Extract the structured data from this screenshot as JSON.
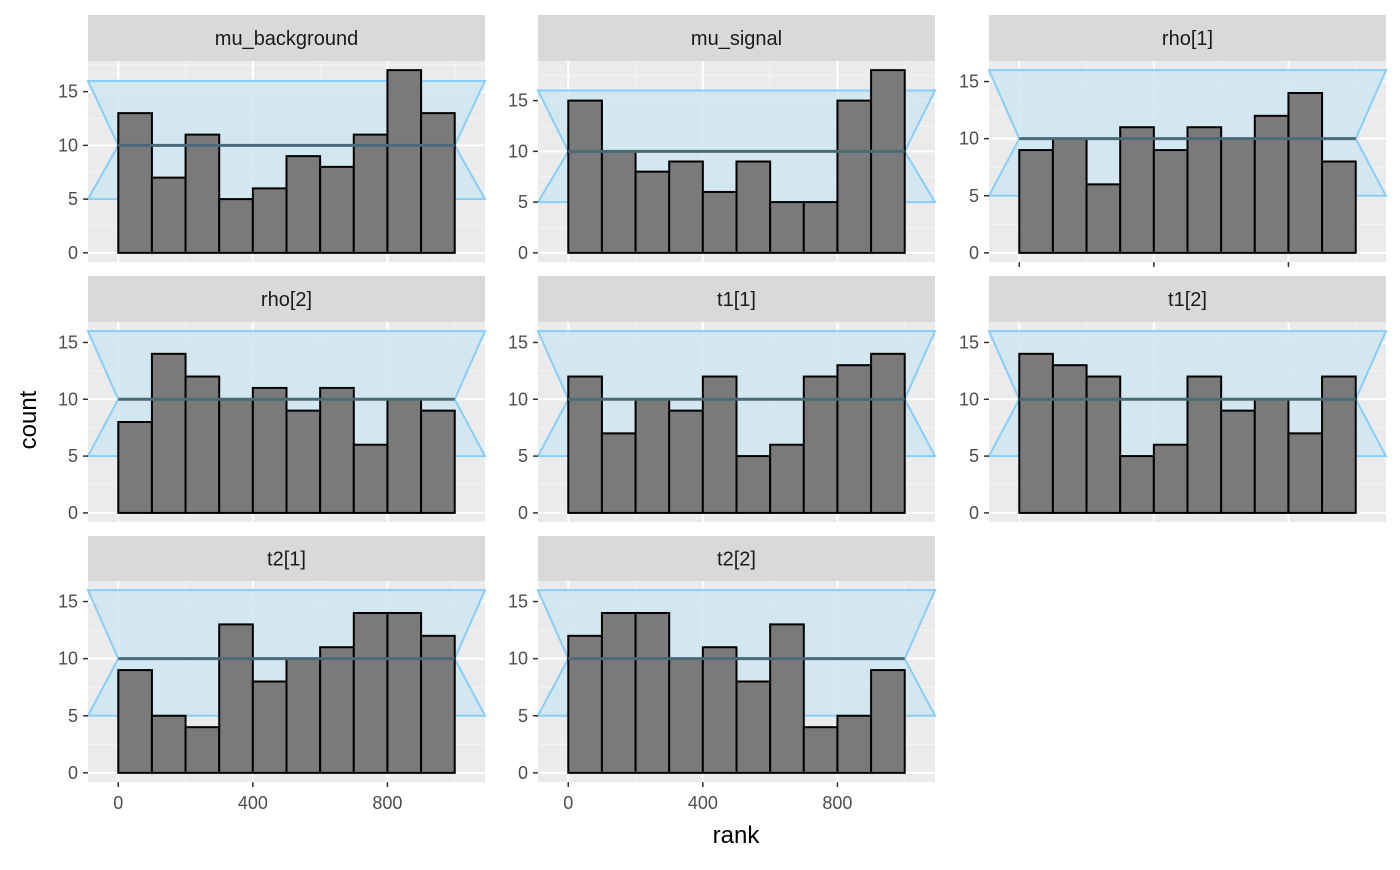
{
  "chart_data": {
    "type": "bar",
    "xlabel": "rank",
    "ylabel": "count",
    "grid": true,
    "xlim": [
      -90,
      1090
    ],
    "x_ticks": [
      0,
      400,
      800
    ],
    "x_tick_labels": [
      "0",
      "400",
      "800"
    ],
    "bin_width": 100,
    "bin_starts": [
      0,
      100,
      200,
      300,
      400,
      500,
      600,
      700,
      800,
      900
    ],
    "band": {
      "type": "area",
      "mean": 10,
      "lower": 5,
      "upper": 16,
      "fill_color": "#cfe6f2",
      "line_color": "#87cefa",
      "mean_line_color": "#4a6a78"
    },
    "bar_fill": "#7a7a7a",
    "bar_stroke": "#000000",
    "panels": [
      {
        "title": "mu_background",
        "ylim": [
          -0.85,
          17.85
        ],
        "y_ticks": [
          0,
          5,
          10,
          15
        ],
        "y_tick_labels": [
          "0",
          "5",
          "10",
          "15"
        ],
        "values": [
          13,
          7,
          11,
          5,
          6,
          9,
          8,
          11,
          17,
          13
        ]
      },
      {
        "title": "mu_signal",
        "ylim": [
          -0.9,
          18.9
        ],
        "y_ticks": [
          0,
          5,
          10,
          15
        ],
        "y_tick_labels": [
          "0",
          "5",
          "10",
          "15"
        ],
        "values": [
          15,
          10,
          8,
          9,
          6,
          9,
          5,
          5,
          15,
          18
        ]
      },
      {
        "title": "rho[1]",
        "ylim": [
          -0.8,
          16.8
        ],
        "y_ticks": [
          0,
          5,
          10,
          15
        ],
        "y_tick_labels": [
          "0",
          "5",
          "10",
          "15"
        ],
        "values": [
          9,
          10,
          6,
          11,
          9,
          11,
          10,
          12,
          14,
          8
        ]
      },
      {
        "title": "rho[2]",
        "ylim": [
          -0.8,
          16.8
        ],
        "y_ticks": [
          0,
          5,
          10,
          15
        ],
        "y_tick_labels": [
          "0",
          "5",
          "10",
          "15"
        ],
        "values": [
          8,
          14,
          12,
          10,
          11,
          9,
          11,
          6,
          10,
          9
        ]
      },
      {
        "title": "t1[1]",
        "ylim": [
          -0.8,
          16.8
        ],
        "y_ticks": [
          0,
          5,
          10,
          15
        ],
        "y_tick_labels": [
          "0",
          "5",
          "10",
          "15"
        ],
        "values": [
          12,
          7,
          10,
          9,
          12,
          5,
          6,
          12,
          13,
          14
        ]
      },
      {
        "title": "t1[2]",
        "ylim": [
          -0.8,
          16.8
        ],
        "y_ticks": [
          0,
          5,
          10,
          15
        ],
        "y_tick_labels": [
          "0",
          "5",
          "10",
          "15"
        ],
        "values": [
          14,
          13,
          12,
          5,
          6,
          12,
          9,
          10,
          7,
          12
        ]
      },
      {
        "title": "t2[1]",
        "ylim": [
          -0.8,
          16.8
        ],
        "y_ticks": [
          0,
          5,
          10,
          15
        ],
        "y_tick_labels": [
          "0",
          "5",
          "10",
          "15"
        ],
        "values": [
          9,
          5,
          4,
          13,
          8,
          10,
          11,
          14,
          14,
          12
        ]
      },
      {
        "title": "t2[2]",
        "ylim": [
          -0.8,
          16.8
        ],
        "y_ticks": [
          0,
          5,
          10,
          15
        ],
        "y_tick_labels": [
          "0",
          "5",
          "10",
          "15"
        ],
        "values": [
          12,
          14,
          14,
          10,
          11,
          8,
          13,
          4,
          5,
          9
        ]
      }
    ],
    "x_axis_panels": [
      2,
      6,
      7
    ]
  }
}
